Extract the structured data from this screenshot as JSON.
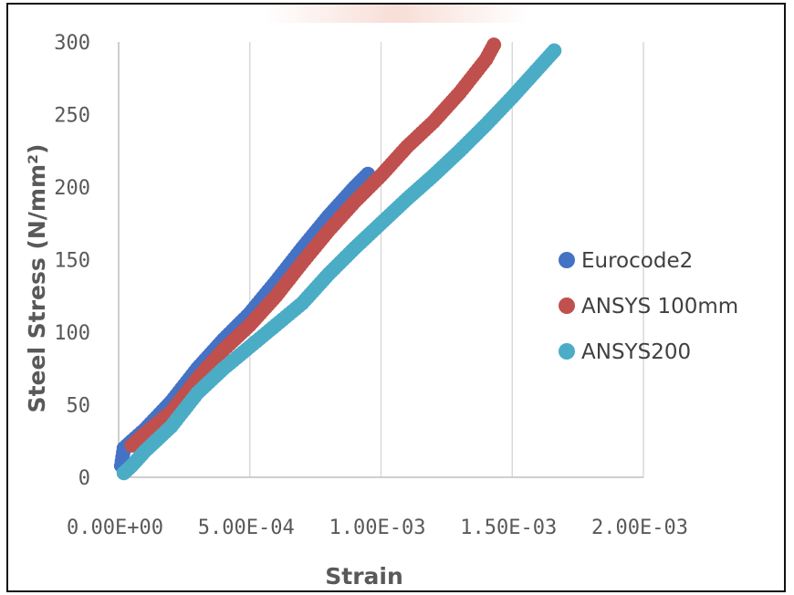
{
  "chart_data": {
    "type": "scatter",
    "title": "",
    "xlabel": "Strain",
    "ylabel": "Steel Stress (N/mm²)",
    "xlim": [
      0,
      0.002
    ],
    "ylim": [
      0,
      300
    ],
    "x_ticks": [
      0,
      0.0005,
      0.001,
      0.0015,
      0.002
    ],
    "x_tick_labels": [
      "0.00E+00",
      "5.00E-04",
      "1.00E-03",
      "1.50E-03",
      "2.00E-03"
    ],
    "y_ticks": [
      0,
      50,
      100,
      150,
      200,
      250,
      300
    ],
    "y_tick_labels": [
      "0",
      "50",
      "100",
      "150",
      "200",
      "250",
      "300"
    ],
    "grid": "vertical-major",
    "legend_position": "right",
    "series": [
      {
        "name": "Eurocode2",
        "color": "#4472C4",
        "points": [
          [
            1e-05,
            8
          ],
          [
            2e-05,
            20
          ],
          [
            5e-05,
            25
          ],
          [
            0.0001,
            33
          ],
          [
            0.0002,
            52
          ],
          [
            0.0003,
            75
          ],
          [
            0.0004,
            95
          ],
          [
            0.0005,
            113
          ],
          [
            0.0006,
            135
          ],
          [
            0.0007,
            158
          ],
          [
            0.0008,
            180
          ],
          [
            0.0009,
            200
          ],
          [
            0.00095,
            209
          ]
        ]
      },
      {
        "name": "ANSYS 100mm",
        "color": "#C0504D",
        "points": [
          [
            5e-05,
            22
          ],
          [
            0.0001,
            30
          ],
          [
            0.0002,
            45
          ],
          [
            0.0003,
            68
          ],
          [
            0.0004,
            88
          ],
          [
            0.0005,
            105
          ],
          [
            0.0006,
            125
          ],
          [
            0.0007,
            148
          ],
          [
            0.0008,
            170
          ],
          [
            0.0009,
            190
          ],
          [
            0.001,
            208
          ],
          [
            0.0011,
            228
          ],
          [
            0.0012,
            245
          ],
          [
            0.0013,
            265
          ],
          [
            0.0014,
            288
          ],
          [
            0.00143,
            298
          ]
        ]
      },
      {
        "name": "ANSYS200",
        "color": "#4BACC6",
        "points": [
          [
            2e-05,
            3
          ],
          [
            5e-05,
            8
          ],
          [
            0.0001,
            18
          ],
          [
            0.0002,
            35
          ],
          [
            0.0003,
            58
          ],
          [
            0.0004,
            75
          ],
          [
            0.0005,
            90
          ],
          [
            0.0006,
            105
          ],
          [
            0.0007,
            120
          ],
          [
            0.0008,
            140
          ],
          [
            0.0009,
            158
          ],
          [
            0.001,
            175
          ],
          [
            0.0011,
            192
          ],
          [
            0.0012,
            208
          ],
          [
            0.0013,
            225
          ],
          [
            0.0014,
            243
          ],
          [
            0.0015,
            262
          ],
          [
            0.0016,
            282
          ],
          [
            0.00166,
            294
          ]
        ]
      }
    ]
  }
}
